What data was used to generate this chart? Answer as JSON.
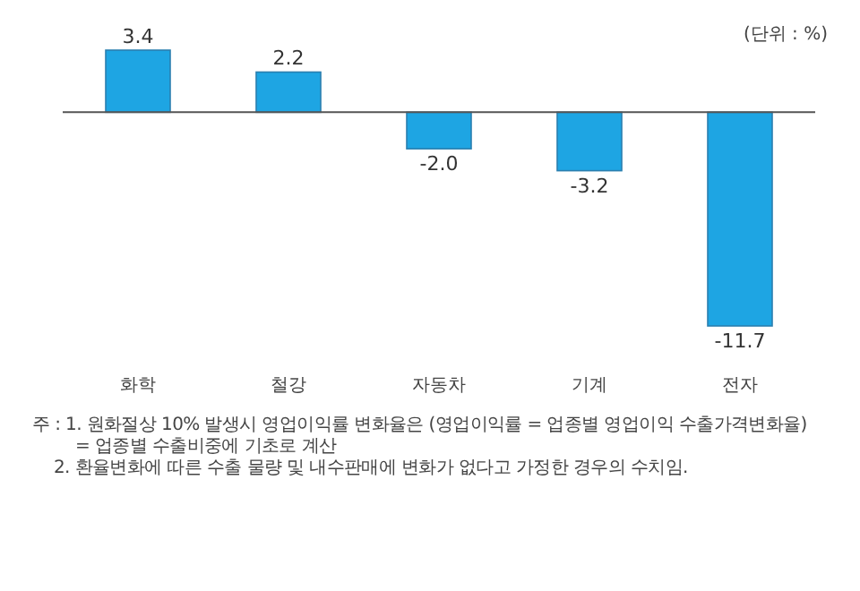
{
  "chart_data": {
    "type": "bar",
    "categories": [
      "화학",
      "철강",
      "자동차",
      "기계",
      "전자"
    ],
    "values": [
      3.4,
      2.2,
      -2.0,
      -3.2,
      -11.7
    ],
    "value_labels": [
      "3.4",
      "2.2",
      "-2.0",
      "-3.2",
      "-11.7"
    ],
    "color": "#1ea5e3",
    "annotations": [
      "(단위 : %)",
      "주 : 1. 원화절상 10% 발생시 영업이익률 변화율은 (영업이익률 = 업종별 영업이익 수출가격변화율)",
      "= 업종별 수출비중에 기초로 계산",
      "2. 환율변화에 따른 수출 물량 및 내수판매에 변화가 없다고 가정한 경우의 수치임."
    ]
  }
}
